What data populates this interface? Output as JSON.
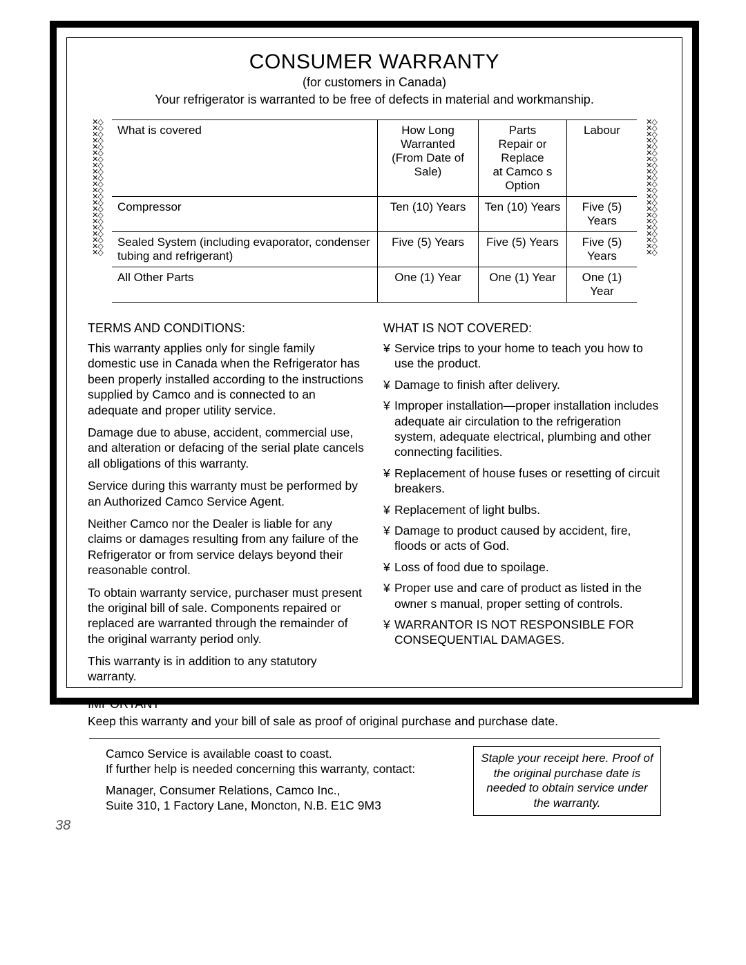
{
  "title": "CONSUMER WARRANTY",
  "subtitle": "(for customers in Canada)",
  "intro": "Your refrigerator is warranted to be free of defects in material and workmanship.",
  "ornament_pattern": "✕◇✕◇✕◇✕◇✕◇✕◇✕◇✕◇✕◇✕◇✕◇✕◇✕◇✕◇✕◇✕◇✕◇✕◇✕◇✕◇✕◇✕◇",
  "table": {
    "headers": [
      "What is covered",
      "How Long Warranted\n(From Date of Sale)",
      "Parts\nRepair or Replace\nat Camco s Option",
      "Labour"
    ],
    "rows": [
      [
        "Compressor",
        "Ten (10) Years",
        "Ten (10) Years",
        "Five (5) Years"
      ],
      [
        "Sealed System (including evaporator, condenser tubing and refrigerant)",
        "Five (5) Years",
        "Five (5) Years",
        "Five (5) Years"
      ],
      [
        "All Other Parts",
        "One (1) Year",
        "One (1) Year",
        "One (1) Year"
      ]
    ]
  },
  "terms": {
    "heading": "TERMS AND CONDITIONS:",
    "paras": [
      "This warranty applies only for single family domestic use in Canada when the Refrigerator has been properly installed according to the instructions supplied by Camco and is connected to an adequate and proper utility service.",
      "Damage due to abuse, accident, commercial use, and alteration or defacing of the serial plate cancels all obligations of this warranty.",
      "Service during this warranty must be performed by an Authorized Camco Service Agent.",
      "Neither Camco nor the Dealer is liable for any claims or damages resulting from any failure of the Refrigerator or from service delays beyond their reasonable control.",
      "To obtain warranty service, purchaser must present the original bill of sale. Components repaired or replaced are warranted through the remainder of the original warranty period only.",
      "This warranty is in addition to any statutory warranty."
    ]
  },
  "not_covered": {
    "heading": "WHAT IS NOT COVERED:",
    "items": [
      "Service trips to your home to teach you how to use the product.",
      "Damage to finish after delivery.",
      "Improper installation—proper installation includes adequate air circulation to the refrigeration system, adequate electrical, plumbing and other connecting facilities.",
      "Replacement of house fuses or resetting of circuit breakers.",
      "Replacement of light bulbs.",
      "Damage to product caused by accident, fire, floods or acts of God.",
      "Loss of food due to spoilage.",
      "Proper use and care of product as listed in the owner s manual, proper setting of controls.",
      "WARRANTOR IS NOT RESPONSIBLE FOR CONSEQUENTIAL DAMAGES."
    ]
  },
  "important": {
    "heading": "IMPORTANT",
    "text": "Keep this warranty and your bill of sale as proof of original purchase and purchase date."
  },
  "footer": {
    "line1": "Camco Service is available coast to coast.\nIf further help is needed concerning this warranty, contact:",
    "line2": "Manager, Consumer Relations, Camco Inc.,\nSuite 310, 1 Factory Lane, Moncton, N.B. E1C 9M3",
    "receipt": "Staple your receipt here. Proof of the original purchase date is needed to obtain service under the warranty."
  },
  "page_number": "38"
}
